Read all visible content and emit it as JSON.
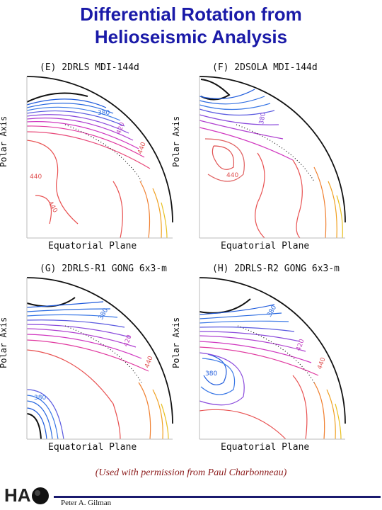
{
  "title_line1": "Differential Rotation from",
  "title_line2": "Helioseismic Analysis",
  "panels": [
    {
      "title": "(E) 2DRLS MDI-144d",
      "ylabel": "Polar Axis",
      "xlabel": "Equatorial Plane",
      "labels": [
        "380",
        "420",
        "440",
        "440",
        "440"
      ]
    },
    {
      "title": "(F) 2DSOLA MDI-144d",
      "ylabel": "Polar Axis",
      "xlabel": "Equatorial Plane",
      "labels": [
        "380",
        "440"
      ]
    },
    {
      "title": "(G) 2DRLS-R1 GONG 6x3-m",
      "ylabel": "Polar Axis",
      "xlabel": "Equatorial Plane",
      "labels": [
        "380",
        "420",
        "440",
        "380"
      ]
    },
    {
      "title": "(H) 2DRLS-R2 GONG 6x3-m",
      "ylabel": "Polar Axis",
      "xlabel": "Equatorial Plane",
      "labels": [
        "380",
        "420",
        "440",
        "380"
      ]
    }
  ],
  "caption": "(Used with permission from Paul Charbonneau)",
  "logo": "HA",
  "author": "Peter A. Gilman",
  "colors": {
    "title": "#1a1aa8",
    "caption": "#8b1a1a",
    "footer_line": "#1a1a6e"
  }
}
